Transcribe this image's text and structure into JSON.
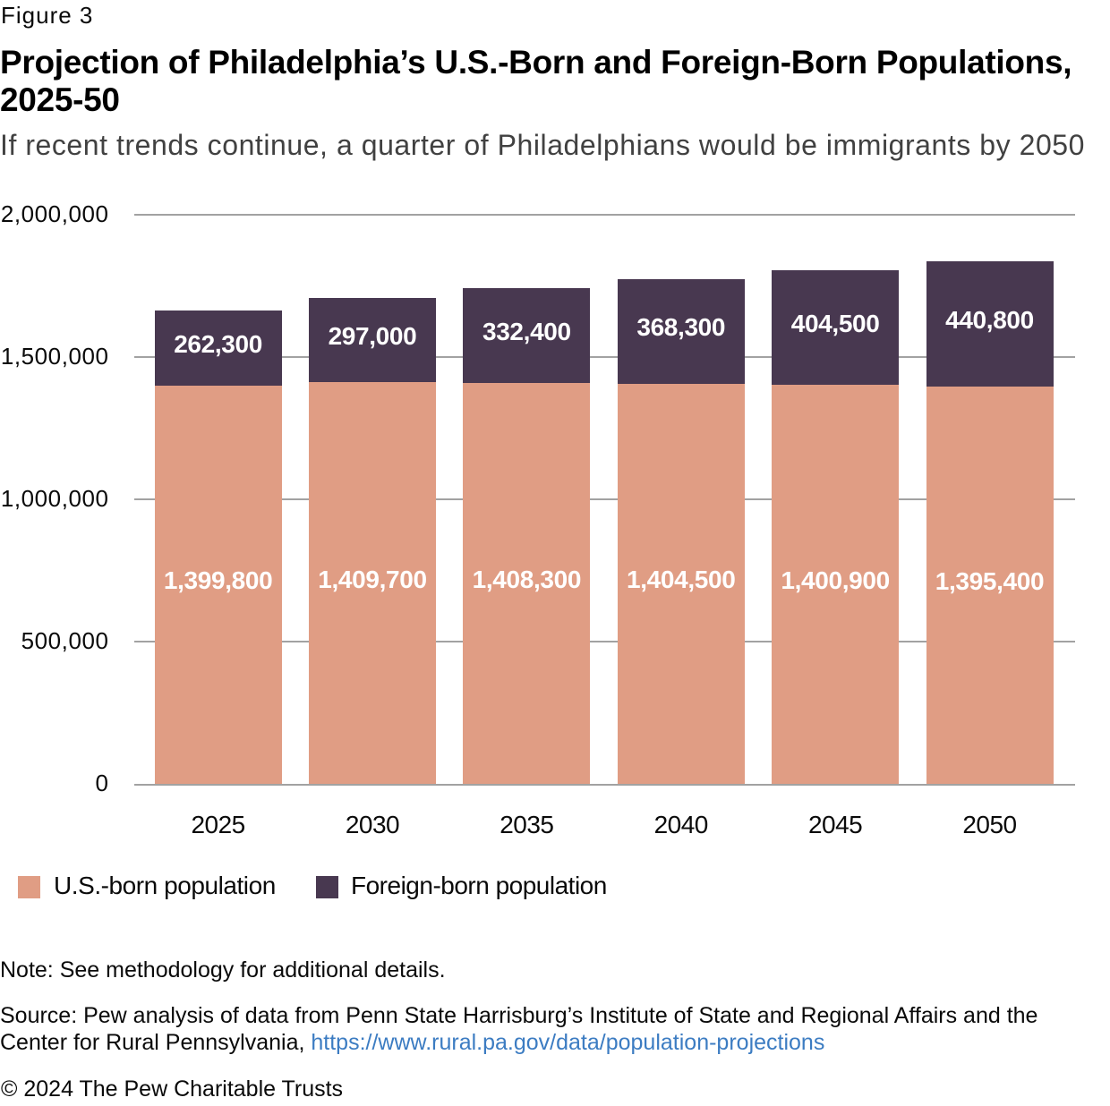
{
  "header": {
    "figure_label": "Figure 3",
    "title": "Projection of Philadelphia’s U.S.-Born and Foreign-Born Populations, 2025-50",
    "subtitle": "If recent trends continue, a quarter of Philadelphians would be immigrants by 2050"
  },
  "chart_data": {
    "type": "bar",
    "stacked": true,
    "title": "Projection of Philadelphia’s U.S.-Born and Foreign-Born Populations, 2025-50",
    "categories": [
      "2025",
      "2030",
      "2035",
      "2040",
      "2045",
      "2050"
    ],
    "series": [
      {
        "name": "U.S.-born population",
        "color": "#e09d84",
        "values": [
          1399800,
          1409700,
          1408300,
          1404500,
          1400900,
          1395400
        ],
        "labels": [
          "1,399,800",
          "1,409,700",
          "1,408,300",
          "1,404,500",
          "1,400,900",
          "1,395,400"
        ]
      },
      {
        "name": "Foreign-born population",
        "color": "#483850",
        "values": [
          262300,
          297000,
          332400,
          368300,
          404500,
          440800
        ],
        "labels": [
          "262,300",
          "297,000",
          "332,400",
          "368,300",
          "404,500",
          "440,800"
        ]
      }
    ],
    "xlabel": "",
    "ylabel": "",
    "ylim": [
      0,
      2000000
    ],
    "y_ticks": [
      {
        "value": 0,
        "label": "0"
      },
      {
        "value": 500000,
        "label": "500,000"
      },
      {
        "value": 1000000,
        "label": "1,000,000"
      },
      {
        "value": 1500000,
        "label": "1,500,000"
      },
      {
        "value": 2000000,
        "label": "2,000,000"
      }
    ],
    "grid": true,
    "legend_position": "bottom",
    "value_label_color": "#ffffff",
    "gridline_color": "#a2a2a2"
  },
  "footer": {
    "note": "Note: See methodology for additional details.",
    "source_prefix": "Source: Pew analysis of data from Penn State Harrisburg’s Institute of State and Regional Affairs and the Center for Rural Pennsylvania, ",
    "source_link": "https://www.rural.pa.gov/data/population-projections",
    "copyright": "© 2024 The Pew Charitable Trusts"
  }
}
